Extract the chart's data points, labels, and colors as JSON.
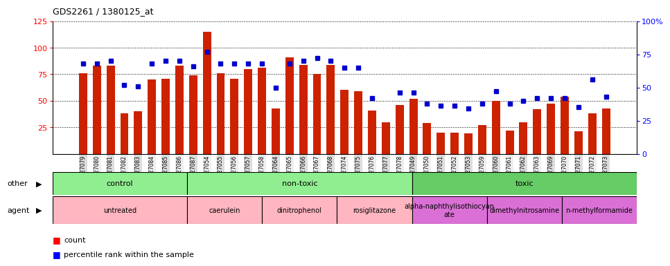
{
  "title": "GDS2261 / 1380125_at",
  "samples": [
    "GSM127079",
    "GSM127080",
    "GSM127081",
    "GSM127082",
    "GSM127083",
    "GSM127084",
    "GSM127085",
    "GSM127086",
    "GSM127087",
    "GSM127054",
    "GSM127055",
    "GSM127056",
    "GSM127057",
    "GSM127058",
    "GSM127064",
    "GSM127065",
    "GSM127066",
    "GSM127067",
    "GSM127068",
    "GSM127074",
    "GSM127075",
    "GSM127076",
    "GSM127077",
    "GSM127078",
    "GSM127049",
    "GSM127050",
    "GSM127051",
    "GSM127052",
    "GSM127053",
    "GSM127059",
    "GSM127060",
    "GSM127061",
    "GSM127062",
    "GSM127063",
    "GSM127069",
    "GSM127070",
    "GSM127071",
    "GSM127072",
    "GSM127073"
  ],
  "count_values": [
    76,
    83,
    83,
    38,
    40,
    70,
    71,
    83,
    74,
    115,
    76,
    71,
    80,
    81,
    43,
    91,
    84,
    75,
    84,
    60,
    59,
    41,
    30,
    46,
    52,
    29,
    20,
    20,
    19,
    27,
    50,
    22,
    30,
    42,
    47,
    54,
    21,
    38,
    43
  ],
  "percentile_values": [
    68,
    68,
    70,
    52,
    51,
    68,
    70,
    70,
    66,
    77,
    68,
    68,
    68,
    68,
    50,
    68,
    70,
    72,
    70,
    65,
    65,
    42,
    null,
    46,
    46,
    38,
    36,
    36,
    34,
    38,
    47,
    38,
    40,
    42,
    42,
    42,
    35,
    56,
    43
  ],
  "bar_color": "#CC2200",
  "dot_color": "#0000CC",
  "ylim_left": [
    0,
    125
  ],
  "yticks_left": [
    25,
    50,
    75,
    100,
    125
  ],
  "ylim_right": [
    0,
    100
  ],
  "yticks_right": [
    0,
    25,
    50,
    75,
    100
  ],
  "other_groups": [
    {
      "label": "control",
      "start": 0,
      "end": 9,
      "color": "#90EE90"
    },
    {
      "label": "non-toxic",
      "start": 9,
      "end": 24,
      "color": "#90EE90"
    },
    {
      "label": "toxic",
      "start": 24,
      "end": 39,
      "color": "#66CC66"
    }
  ],
  "agent_groups": [
    {
      "label": "untreated",
      "start": 0,
      "end": 9,
      "color": "#FFB6C1"
    },
    {
      "label": "caerulein",
      "start": 9,
      "end": 14,
      "color": "#FFB6C1"
    },
    {
      "label": "dinitrophenol",
      "start": 14,
      "end": 19,
      "color": "#FFB6C1"
    },
    {
      "label": "rosiglitazone",
      "start": 19,
      "end": 24,
      "color": "#FFB6C1"
    },
    {
      "label": "alpha-naphthylisothiocyan\nate",
      "start": 24,
      "end": 29,
      "color": "#DA70D6"
    },
    {
      "label": "dimethylnitrosamine",
      "start": 29,
      "end": 34,
      "color": "#DA70D6"
    },
    {
      "label": "n-methylformamide",
      "start": 34,
      "end": 39,
      "color": "#DA70D6"
    }
  ]
}
